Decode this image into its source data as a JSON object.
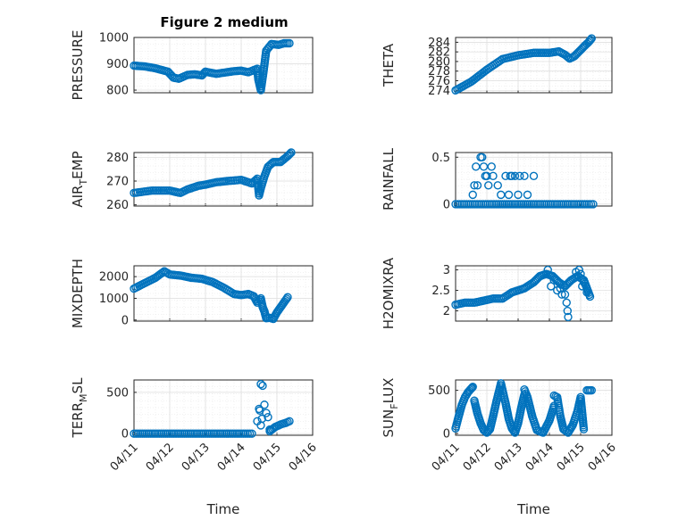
{
  "figure": {
    "title": "Figure 2 medium",
    "marker_color": "#0072bd"
  },
  "chart_data": [
    {
      "type": "scatter",
      "ylabel": "PRESSURE",
      "ylim": [
        790,
        1000
      ],
      "yticks": [
        800,
        900,
        1000
      ],
      "xlim": [
        0,
        5
      ],
      "segments": [
        {
          "x": [
            0,
            0.3,
            0.6,
            0.95,
            1.1,
            1.25,
            1.5,
            1.7,
            1.9,
            2.0,
            2.3,
            2.6,
            2.8,
            3.0,
            3.2,
            3.35,
            3.45,
            3.48,
            3.55,
            3.62,
            3.7,
            3.85,
            4.05,
            4.2,
            4.35
          ],
          "y": [
            893,
            890,
            883,
            870,
            848,
            843,
            858,
            860,
            856,
            870,
            862,
            868,
            872,
            874,
            868,
            876,
            881,
            840,
            800,
            865,
            950,
            975,
            972,
            978,
            978
          ]
        }
      ]
    },
    {
      "type": "scatter",
      "ylabel": "THETA",
      "ylim": [
        273.5,
        285
      ],
      "yticks": [
        274,
        276,
        278,
        280,
        282,
        284
      ],
      "xlim": [
        0,
        5
      ],
      "segments": [
        {
          "x": [
            0,
            0.5,
            1.0,
            1.5,
            2.0,
            2.5,
            3.0,
            3.3,
            3.5,
            3.65,
            3.8,
            4.0,
            4.15,
            4.25,
            4.35
          ],
          "y": [
            274,
            275.8,
            278.3,
            280.5,
            281.3,
            281.8,
            281.8,
            282.1,
            281.4,
            280.6,
            281.1,
            282.4,
            283.4,
            284.0,
            284.8
          ]
        }
      ]
    },
    {
      "type": "scatter",
      "ylabel": "AIRTEMP",
      "ylim": [
        259.5,
        282
      ],
      "yticks": [
        260,
        270,
        280
      ],
      "xlim": [
        0,
        5
      ],
      "segments": [
        {
          "x": [
            0,
            0.5,
            1.0,
            1.3,
            1.5,
            1.8,
            2.0,
            2.3,
            2.6,
            3.0,
            3.3,
            3.45,
            3.5,
            3.55,
            3.65,
            3.75,
            3.9,
            4.1,
            4.3,
            4.4
          ],
          "y": [
            265,
            266,
            266,
            265,
            266.5,
            268,
            268.5,
            269.5,
            270,
            270.5,
            269,
            271,
            264,
            267,
            272,
            276,
            278,
            278,
            280.5,
            282
          ]
        }
      ]
    },
    {
      "type": "scatter",
      "ylabel": "RAINFALL",
      "ylim": [
        -0.02,
        0.55
      ],
      "yticks": [
        0,
        0.5
      ],
      "xlim": [
        0,
        5
      ],
      "segments": [
        {
          "x": [
            0,
            1.3,
            2.5,
            4.4
          ],
          "y": [
            0,
            0,
            0,
            0
          ]
        }
      ],
      "points": {
        "x": [
          0.55,
          0.6,
          0.65,
          0.7,
          0.8,
          0.85,
          0.9,
          0.95,
          1.0,
          1.05,
          1.15,
          1.2,
          1.35,
          1.45,
          1.6,
          1.7,
          1.75,
          1.8,
          1.9,
          2.0,
          2.05,
          2.2,
          2.3,
          2.5
        ],
        "y": [
          0.1,
          0.2,
          0.4,
          0.2,
          0.5,
          0.5,
          0.4,
          0.3,
          0.3,
          0.2,
          0.4,
          0.3,
          0.2,
          0.1,
          0.3,
          0.1,
          0.3,
          0.3,
          0.3,
          0.1,
          0.3,
          0.3,
          0.1,
          0.3
        ]
      }
    },
    {
      "type": "scatter",
      "ylabel": "MIXDEPTH",
      "ylim": [
        -50,
        2500
      ],
      "yticks": [
        0,
        1000,
        2000
      ],
      "xlim": [
        0,
        5
      ],
      "segments": [
        {
          "x": [
            0,
            0.3,
            0.6,
            0.85,
            1.0,
            1.3,
            1.6,
            1.9,
            2.2,
            2.5,
            2.8,
            3.0,
            3.2,
            3.35,
            3.45,
            3.55,
            3.6,
            3.65,
            3.7,
            3.8,
            3.9,
            4.0,
            4.15,
            4.3
          ],
          "y": [
            1450,
            1700,
            1950,
            2250,
            2100,
            2050,
            1950,
            1900,
            1750,
            1500,
            1200,
            1150,
            1200,
            1100,
            800,
            1000,
            600,
            400,
            80,
            100,
            50,
            350,
            700,
            1050
          ]
        }
      ]
    },
    {
      "type": "scatter",
      "ylabel": "H2OMIXRA",
      "ylim": [
        1.75,
        3.1
      ],
      "yticks": [
        2,
        2.5,
        3
      ],
      "xlim": [
        0,
        5
      ],
      "segments": [
        {
          "x": [
            0,
            0.3,
            0.6,
            0.9,
            1.2,
            1.5,
            1.8,
            2.0,
            2.2,
            2.5,
            2.7,
            2.9,
            3.1,
            3.3,
            3.5,
            3.7,
            3.9,
            4.1,
            4.3
          ],
          "y": [
            2.15,
            2.2,
            2.2,
            2.25,
            2.3,
            2.3,
            2.45,
            2.5,
            2.55,
            2.7,
            2.85,
            2.9,
            2.85,
            2.7,
            2.6,
            2.75,
            2.85,
            2.75,
            2.35
          ]
        }
      ],
      "points": {
        "x": [
          2.95,
          3.05,
          3.15,
          3.25,
          3.35,
          3.4,
          3.5,
          3.55,
          3.58,
          3.6,
          3.85,
          3.95,
          4.0,
          4.05,
          4.1,
          4.2
        ],
        "y": [
          3.0,
          2.6,
          2.75,
          2.5,
          2.55,
          2.4,
          2.4,
          2.2,
          2.0,
          1.85,
          2.95,
          3.0,
          2.9,
          2.6,
          2.7,
          2.45
        ]
      }
    },
    {
      "type": "scatter",
      "ylabel": "TERRMSL",
      "ylim": [
        -20,
        650
      ],
      "yticks": [
        0,
        500
      ],
      "xlim": [
        0,
        5
      ],
      "segments": [
        {
          "x": [
            0,
            1,
            2,
            3,
            3.3
          ],
          "y": [
            0,
            0,
            0,
            0,
            0
          ]
        },
        {
          "x": [
            3.8,
            3.95,
            4.1,
            4.25,
            4.35
          ],
          "y": [
            30,
            80,
            110,
            130,
            150
          ]
        }
      ],
      "points": {
        "x": [
          3.45,
          3.5,
          3.52,
          3.55,
          3.6,
          3.65,
          3.7,
          3.75,
          3.8,
          3.55,
          3.58
        ],
        "y": [
          150,
          300,
          280,
          600,
          580,
          350,
          250,
          200,
          50,
          100,
          180
        ]
      }
    },
    {
      "type": "scatter",
      "ylabel": "SUNFLUX",
      "ylim": [
        -20,
        620
      ],
      "yticks": [
        0,
        500
      ],
      "xlim": [
        0,
        5
      ],
      "segments": [
        {
          "x": [
            0.0,
            0.1,
            0.2,
            0.3,
            0.4,
            0.5,
            0.55
          ],
          "y": [
            60,
            200,
            330,
            420,
            480,
            520,
            540
          ]
        },
        {
          "x": [
            0.6,
            0.7,
            0.8,
            0.9,
            1.0,
            1.1,
            1.2,
            1.3,
            1.45,
            1.6,
            1.7,
            1.8,
            1.9,
            2.0,
            2.1,
            2.2
          ],
          "y": [
            380,
            230,
            120,
            40,
            10,
            50,
            200,
            360,
            580,
            350,
            170,
            60,
            10,
            120,
            300,
            450
          ]
        },
        {
          "x": [
            2.2,
            2.3,
            2.45,
            2.6,
            2.8,
            3.0,
            3.15
          ],
          "y": [
            510,
            420,
            200,
            40,
            10,
            150,
            320
          ]
        },
        {
          "x": [
            3.15,
            3.25,
            3.35,
            3.45,
            3.6,
            3.75,
            3.9,
            4.0,
            4.1
          ],
          "y": [
            440,
            420,
            200,
            50,
            10,
            100,
            260,
            420,
            50
          ]
        },
        {
          "x": [
            4.2,
            4.3,
            4.35
          ],
          "y": [
            500,
            500,
            500
          ]
        }
      ]
    }
  ],
  "xaxis": {
    "ticks": [
      "04/11",
      "04/12",
      "04/13",
      "04/14",
      "04/15",
      "04/16"
    ],
    "label": "Time"
  }
}
